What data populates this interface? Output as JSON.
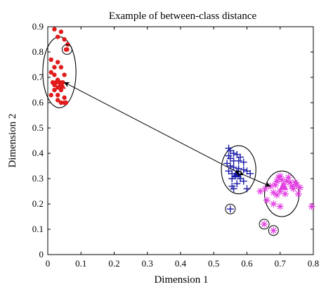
{
  "chart_data": {
    "type": "scatter",
    "title": "Example of between-class distance",
    "xlabel": "Dimension 1",
    "ylabel": "Dimension 2",
    "xlim": [
      0,
      0.8
    ],
    "ylim": [
      0,
      0.9
    ],
    "xticks": [
      "0",
      "0.1",
      "0.2",
      "0.3",
      "0.4",
      "0.5",
      "0.6",
      "0.7",
      "0.8"
    ],
    "yticks": [
      "0",
      "0.1",
      "0.2",
      "0.3",
      "0.4",
      "0.5",
      "0.6",
      "0.7",
      "0.8",
      "0.9"
    ],
    "grid": false,
    "legend": "none",
    "series": [
      {
        "marker": "dot",
        "color": "#e11b1b",
        "points": [
          [
            0.02,
            0.89
          ],
          [
            0.04,
            0.88
          ],
          [
            0.03,
            0.86
          ],
          [
            0.05,
            0.85
          ],
          [
            0.06,
            0.83
          ],
          [
            0.055,
            0.81
          ],
          [
            0.01,
            0.77
          ],
          [
            0.03,
            0.76
          ],
          [
            0.02,
            0.74
          ],
          [
            0.04,
            0.74
          ],
          [
            0.01,
            0.72
          ],
          [
            0.02,
            0.71
          ],
          [
            0.05,
            0.71
          ],
          [
            0.03,
            0.69
          ],
          [
            0.015,
            0.68
          ],
          [
            0.025,
            0.68
          ],
          [
            0.035,
            0.68
          ],
          [
            0.045,
            0.68
          ],
          [
            0.02,
            0.67
          ],
          [
            0.03,
            0.66
          ],
          [
            0.02,
            0.65
          ],
          [
            0.04,
            0.65
          ],
          [
            0.01,
            0.63
          ],
          [
            0.03,
            0.63
          ],
          [
            0.05,
            0.62
          ],
          [
            0.03,
            0.61
          ],
          [
            0.04,
            0.6
          ],
          [
            0.05,
            0.6
          ],
          [
            0.055,
            0.6
          ]
        ],
        "center": [
          0.04,
          0.67
        ],
        "outliers": [
          [
            0.058,
            0.81
          ]
        ]
      },
      {
        "marker": "plus",
        "color": "#1a1aa8",
        "points": [
          [
            0.545,
            0.42
          ],
          [
            0.55,
            0.41
          ],
          [
            0.56,
            0.4
          ],
          [
            0.57,
            0.395
          ],
          [
            0.58,
            0.385
          ],
          [
            0.545,
            0.39
          ],
          [
            0.55,
            0.38
          ],
          [
            0.56,
            0.37
          ],
          [
            0.575,
            0.37
          ],
          [
            0.59,
            0.365
          ],
          [
            0.54,
            0.36
          ],
          [
            0.55,
            0.35
          ],
          [
            0.56,
            0.345
          ],
          [
            0.575,
            0.34
          ],
          [
            0.59,
            0.335
          ],
          [
            0.6,
            0.33
          ],
          [
            0.61,
            0.32
          ],
          [
            0.545,
            0.33
          ],
          [
            0.555,
            0.32
          ],
          [
            0.565,
            0.31
          ],
          [
            0.58,
            0.3
          ],
          [
            0.59,
            0.29
          ],
          [
            0.555,
            0.3
          ],
          [
            0.57,
            0.28
          ],
          [
            0.555,
            0.27
          ],
          [
            0.56,
            0.26
          ],
          [
            0.6,
            0.26
          ]
        ],
        "center": [
          0.57,
          0.32
        ],
        "outliers": [
          [
            0.55,
            0.18
          ]
        ]
      },
      {
        "marker": "asterisk",
        "color": "#e23ee2",
        "points": [
          [
            0.64,
            0.25
          ],
          [
            0.655,
            0.26
          ],
          [
            0.67,
            0.27
          ],
          [
            0.68,
            0.245
          ],
          [
            0.685,
            0.275
          ],
          [
            0.69,
            0.29
          ],
          [
            0.695,
            0.305
          ],
          [
            0.7,
            0.31
          ],
          [
            0.705,
            0.295
          ],
          [
            0.71,
            0.27
          ],
          [
            0.715,
            0.24
          ],
          [
            0.72,
            0.29
          ],
          [
            0.725,
            0.305
          ],
          [
            0.73,
            0.285
          ],
          [
            0.735,
            0.27
          ],
          [
            0.74,
            0.26
          ],
          [
            0.745,
            0.285
          ],
          [
            0.75,
            0.275
          ],
          [
            0.76,
            0.265
          ],
          [
            0.7,
            0.25
          ],
          [
            0.69,
            0.235
          ],
          [
            0.66,
            0.215
          ],
          [
            0.68,
            0.2
          ],
          [
            0.7,
            0.19
          ],
          [
            0.755,
            0.24
          ],
          [
            0.795,
            0.19
          ]
        ],
        "center": [
          0.71,
          0.27
        ],
        "outliers": [
          [
            0.652,
            0.12
          ],
          [
            0.68,
            0.095
          ]
        ]
      }
    ],
    "cluster_circles": [
      {
        "center": [
          0.035,
          0.72
        ],
        "rx": 0.05,
        "ry": 0.14
      },
      {
        "center": [
          0.575,
          0.335
        ],
        "rx": 0.052,
        "ry": 0.095
      },
      {
        "center": [
          0.705,
          0.24
        ],
        "rx": 0.052,
        "ry": 0.09
      }
    ],
    "arrows": [
      {
        "from": [
          0.565,
          0.33
        ],
        "to": [
          0.05,
          0.68
        ]
      },
      {
        "from": [
          0.59,
          0.315
        ],
        "to": [
          0.67,
          0.27
        ]
      }
    ]
  }
}
